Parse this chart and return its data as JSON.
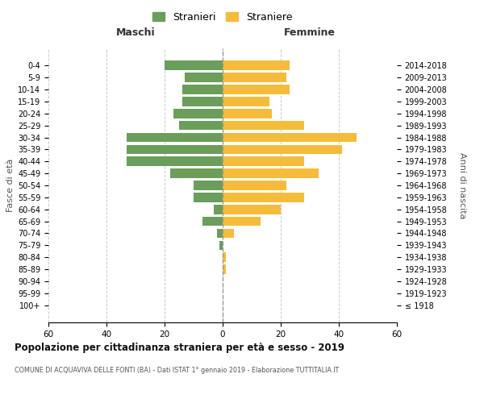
{
  "age_groups": [
    "100+",
    "95-99",
    "90-94",
    "85-89",
    "80-84",
    "75-79",
    "70-74",
    "65-69",
    "60-64",
    "55-59",
    "50-54",
    "45-49",
    "40-44",
    "35-39",
    "30-34",
    "25-29",
    "20-24",
    "15-19",
    "10-14",
    "5-9",
    "0-4"
  ],
  "birth_years": [
    "≤ 1918",
    "1919-1923",
    "1924-1928",
    "1929-1933",
    "1934-1938",
    "1939-1943",
    "1944-1948",
    "1949-1953",
    "1954-1958",
    "1959-1963",
    "1964-1968",
    "1969-1973",
    "1974-1978",
    "1979-1983",
    "1984-1988",
    "1989-1993",
    "1994-1998",
    "1999-2003",
    "2004-2008",
    "2009-2013",
    "2014-2018"
  ],
  "maschi": [
    0,
    0,
    0,
    0,
    0,
    1,
    2,
    7,
    3,
    10,
    10,
    18,
    33,
    33,
    33,
    15,
    17,
    14,
    14,
    13,
    20
  ],
  "femmine": [
    0,
    0,
    0,
    1,
    1,
    0,
    4,
    13,
    20,
    28,
    22,
    33,
    28,
    41,
    46,
    28,
    17,
    16,
    23,
    22,
    23
  ],
  "color_maschi": "#6a9e5a",
  "color_femmine": "#f5bc3c",
  "title": "Popolazione per cittadinanza straniera per età e sesso - 2019",
  "subtitle": "COMUNE DI ACQUAVIVA DELLE FONTI (BA) - Dati ISTAT 1° gennaio 2019 - Elaborazione TUTTITALIA.IT",
  "xlabel_maschi": "Maschi",
  "xlabel_femmine": "Femmine",
  "ylabel_left": "Fasce di età",
  "ylabel_right": "Anni di nascita",
  "legend_maschi": "Stranieri",
  "legend_femmine": "Straniere",
  "xlim": 60,
  "background_color": "#ffffff",
  "grid_color": "#cccccc"
}
